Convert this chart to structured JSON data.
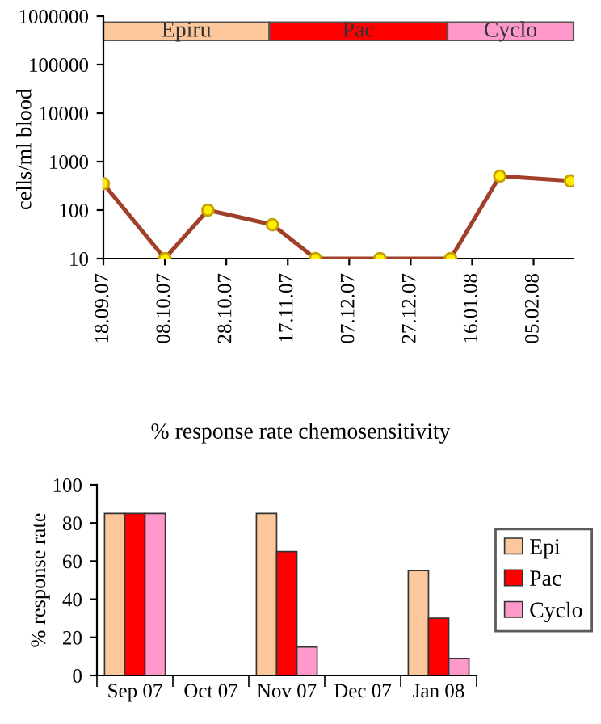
{
  "chart_data": [
    {
      "type": "line",
      "ylabel": "cells/ml blood",
      "log": true,
      "x": [
        "2007-09-18",
        "2007-10-08",
        "2007-10-22",
        "2007-11-12",
        "2007-11-26",
        "2007-12-17",
        "2008-01-09",
        "2008-01-25",
        "2008-02-17"
      ],
      "series": [
        {
          "color": "#a0402a",
          "values": [
            350,
            10,
            100,
            50,
            10,
            10,
            10,
            500,
            400
          ]
        }
      ],
      "marker": "circle",
      "line_style": "solid",
      "grid": false,
      "legend": false,
      "xlim": [
        "2007-09-18",
        "2008-02-18"
      ],
      "ylim": [
        10,
        1000000
      ],
      "yticks": [
        10,
        100,
        1000,
        10000,
        100000,
        1000000
      ],
      "xticks": [
        {
          "value": "2007-09-18",
          "label": "18.09.07"
        },
        {
          "value": "2007-10-08",
          "label": "08.10.07"
        },
        {
          "value": "2007-10-28",
          "label": "28.10.07"
        },
        {
          "value": "2007-11-17",
          "label": "17.11.07"
        },
        {
          "value": "2007-12-07",
          "label": "07.12.07"
        },
        {
          "value": "2007-12-27",
          "label": "27.12.07"
        },
        {
          "value": "2008-01-16",
          "label": "16.01.08"
        },
        {
          "value": "2008-02-05",
          "label": "05.02.08"
        }
      ],
      "bands": [
        {
          "axis": "x",
          "from": "2007-09-18",
          "to": "2007-11-11",
          "label": "Epiru",
          "color": "#fcc89b"
        },
        {
          "axis": "x",
          "from": "2007-11-11",
          "to": "2008-01-08",
          "label": "Pac",
          "color": "#ff0000"
        },
        {
          "axis": "x",
          "from": "2008-01-08",
          "to": "2008-02-18",
          "label": "Cyclo",
          "color": "#ff99cc"
        }
      ]
    },
    {
      "type": "bar",
      "title": "% response rate chemosensitivity",
      "ylabel": "% response rate",
      "categories": [
        "Sep 07",
        "Oct 07",
        "Nov 07",
        "Dec 07",
        "Jan 08"
      ],
      "series": [
        {
          "name": "Epi",
          "color": "#fcc89b",
          "values": [
            85,
            null,
            85,
            null,
            55
          ]
        },
        {
          "name": "Pac",
          "color": "#ff0000",
          "values": [
            85,
            null,
            65,
            null,
            30
          ]
        },
        {
          "name": "Cyclo",
          "color": "#ff99cc",
          "values": [
            85,
            null,
            15,
            null,
            9
          ]
        }
      ],
      "ylim": [
        0,
        100
      ],
      "yticks": [
        0,
        20,
        40,
        60,
        80,
        100
      ],
      "grid": false,
      "legend": "right"
    }
  ]
}
